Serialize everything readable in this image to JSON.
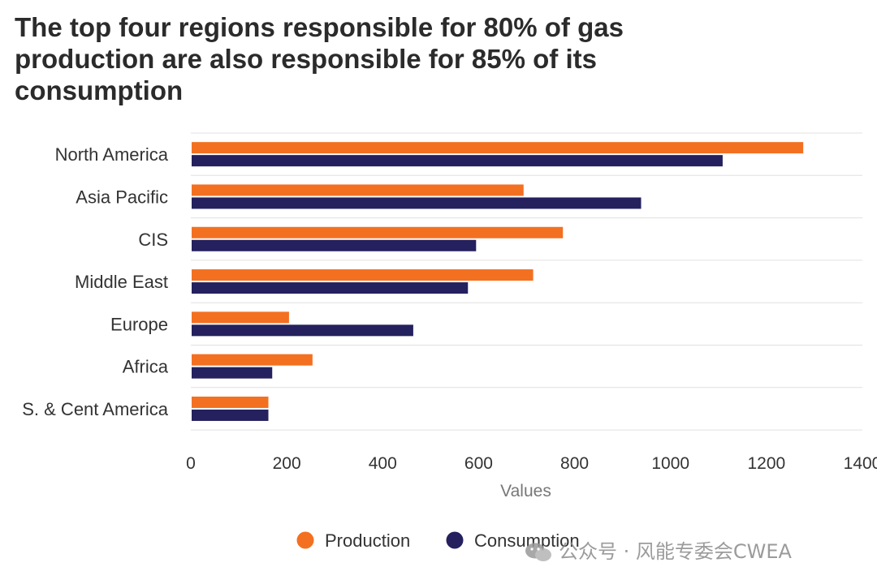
{
  "title": "The top four regions responsible for 80% of gas production are also responsible for 85% of its consumption",
  "watermark": "公众号 · 风能专委会CWEA",
  "colors": {
    "production": "#f37021",
    "consumption": "#24215e",
    "grid": "#e0e0e0"
  },
  "chart_data": {
    "type": "bar",
    "orientation": "horizontal",
    "categories": [
      "North America",
      "Asia Pacific",
      "CIS",
      "Middle East",
      "Europe",
      "Africa",
      "S. & Cent America"
    ],
    "series": [
      {
        "name": "Production",
        "color": "#f37021",
        "values": [
          1275,
          692,
          774,
          712,
          203,
          252,
          160
        ]
      },
      {
        "name": "Consumption",
        "color": "#24215e",
        "values": [
          1107,
          937,
          593,
          576,
          462,
          168,
          160
        ]
      }
    ],
    "xlabel": "Values",
    "ylabel": "",
    "xlim": [
      0,
      1400
    ],
    "xticks": [
      "0",
      "200",
      "400",
      "600",
      "800",
      "1000",
      "1200",
      "1400"
    ],
    "grid": "horizontal separators",
    "legend": "bottom-center"
  }
}
